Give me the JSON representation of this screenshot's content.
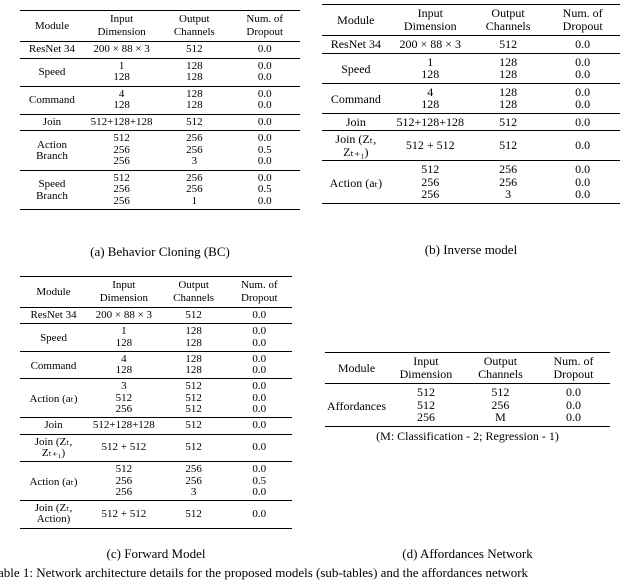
{
  "tables": {
    "a": {
      "header": [
        "Module",
        "Input Dimension",
        "Output Channels",
        "Num. of Dropout"
      ],
      "groups": [
        {
          "module": "ResNet 34",
          "rows": [
            [
              "200 × 88 × 3",
              "512",
              "0.0"
            ]
          ]
        },
        {
          "module": "Speed",
          "rows": [
            [
              "1",
              "128",
              "0.0"
            ],
            [
              "128",
              "128",
              "0.0"
            ]
          ]
        },
        {
          "module": "Command",
          "rows": [
            [
              "4",
              "128",
              "0.0"
            ],
            [
              "128",
              "128",
              "0.0"
            ]
          ]
        },
        {
          "module": "Join",
          "rows": [
            [
              "512+128+128",
              "512",
              "0.0"
            ]
          ]
        },
        {
          "module": "Action Branch",
          "rows": [
            [
              "512",
              "256",
              "0.0"
            ],
            [
              "256",
              "256",
              "0.5"
            ],
            [
              "256",
              "3",
              "0.0"
            ]
          ]
        },
        {
          "module": "Speed Branch",
          "rows": [
            [
              "512",
              "256",
              "0.0"
            ],
            [
              "256",
              "256",
              "0.5"
            ],
            [
              "256",
              "1",
              "0.0"
            ]
          ]
        }
      ],
      "caption": "(a) Behavior Cloning (BC)"
    },
    "b": {
      "header": [
        "Module",
        "Input Dimension",
        "Output Channels",
        "Num. of Dropout"
      ],
      "groups": [
        {
          "module": "ResNet 34",
          "rows": [
            [
              "200 × 88 × 3",
              "512",
              "0.0"
            ]
          ]
        },
        {
          "module": "Speed",
          "rows": [
            [
              "1",
              "128",
              "0.0"
            ],
            [
              "128",
              "128",
              "0.0"
            ]
          ]
        },
        {
          "module": "Command",
          "rows": [
            [
              "4",
              "128",
              "0.0"
            ],
            [
              "128",
              "128",
              "0.0"
            ]
          ]
        },
        {
          "module": "Join",
          "rows": [
            [
              "512+128+128",
              "512",
              "0.0"
            ]
          ]
        },
        {
          "module": "Join (Zₜ, Zₜ₊₁)",
          "rows": [
            [
              "512 + 512",
              "512",
              "0.0"
            ]
          ]
        },
        {
          "module": "Action (aₜ)",
          "rows": [
            [
              "512",
              "256",
              "0.0"
            ],
            [
              "256",
              "256",
              "0.0"
            ],
            [
              "256",
              "3",
              "0.0"
            ]
          ]
        }
      ],
      "caption": "(b) Inverse model"
    },
    "c": {
      "header": [
        "Module",
        "Input Dimension",
        "Output Channels",
        "Num. of Dropout"
      ],
      "groups": [
        {
          "module": "ResNet 34",
          "rows": [
            [
              "200 × 88 × 3",
              "512",
              "0.0"
            ]
          ]
        },
        {
          "module": "Speed",
          "rows": [
            [
              "1",
              "128",
              "0.0"
            ],
            [
              "128",
              "128",
              "0.0"
            ]
          ]
        },
        {
          "module": "Command",
          "rows": [
            [
              "4",
              "128",
              "0.0"
            ],
            [
              "128",
              "128",
              "0.0"
            ]
          ]
        },
        {
          "module": "Action (aₜ)",
          "rows": [
            [
              "3",
              "512",
              "0.0"
            ],
            [
              "512",
              "512",
              "0.0"
            ],
            [
              "256",
              "512",
              "0.0"
            ]
          ]
        },
        {
          "module": "Join",
          "rows": [
            [
              "512+128+128",
              "512",
              "0.0"
            ]
          ]
        },
        {
          "module": "Join (Zₜ, Zₜ₊₁)",
          "rows": [
            [
              "512 + 512",
              "512",
              "0.0"
            ]
          ]
        },
        {
          "module": "Action (aₜ)",
          "rows": [
            [
              "512",
              "256",
              "0.0"
            ],
            [
              "256",
              "256",
              "0.5"
            ],
            [
              "256",
              "3",
              "0.0"
            ]
          ]
        },
        {
          "module": "Join (Zₜ, Action)",
          "rows": [
            [
              "512 + 512",
              "512",
              "0.0"
            ]
          ]
        }
      ],
      "caption": "(c) Forward Model"
    },
    "d": {
      "header": [
        "Module",
        "Input Dimension",
        "Output Channels",
        "Num. of Dropout"
      ],
      "groups": [
        {
          "module": "Affordances",
          "rows": [
            [
              "512",
              "512",
              "0.0"
            ],
            [
              "512",
              "256",
              "0.0"
            ],
            [
              "256",
              "M",
              "0.0"
            ]
          ]
        }
      ],
      "note": "(M: Classification - 2; Regression - 1)",
      "caption": "(d) Affordances Network"
    }
  },
  "footer": "able 1: Network architecture details for the proposed models (sub-tables) and the affordances network"
}
